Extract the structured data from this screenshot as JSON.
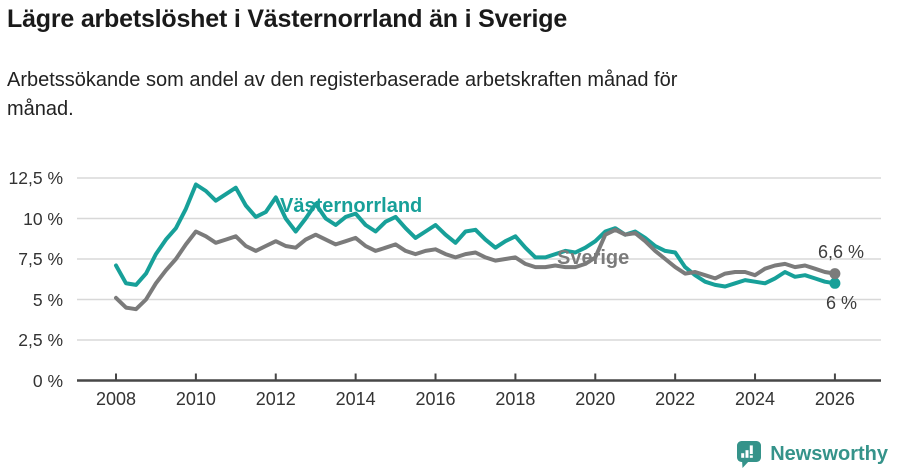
{
  "header": {
    "title": "Lägre arbetslöshet i Västernorrland än i Sverige",
    "subtitle": "Arbetssökande som andel av den registerbaserade arbetskraften månad för\nmånad."
  },
  "colors": {
    "accent_teal": "#17A099",
    "line_sverige": "#7B7B7B",
    "grid": "#D8D8D8",
    "axis": "#474747",
    "text_dark": "#1A1A1A",
    "text_body": "#222222",
    "tick_text": "#333333",
    "annotation_text": "#3D3D3D",
    "logo_teal": "#35938A"
  },
  "chart_data": {
    "type": "line",
    "unit": "%",
    "grid": true,
    "legend": "inline-labels",
    "ylim": [
      0,
      12.5
    ],
    "yticks": {
      "values": [
        12.5,
        10,
        7.5,
        5,
        2.5,
        0
      ],
      "labels": [
        "12,5 %",
        "10 %",
        "7,5 %",
        "5 %",
        "2,5 %",
        "0 %"
      ]
    },
    "xticks": {
      "values": [
        2008,
        2010,
        2012,
        2014,
        2016,
        2018,
        2020,
        2022,
        2024,
        2026
      ],
      "labels": [
        "2008",
        "2010",
        "2012",
        "2014",
        "2016",
        "2018",
        "2020",
        "2022",
        "2024",
        "2026"
      ]
    },
    "x": [
      "2008-Q1",
      "2008-Q2",
      "2008-Q3",
      "2008-Q4",
      "2009-Q1",
      "2009-Q2",
      "2009-Q3",
      "2009-Q4",
      "2010-Q1",
      "2010-Q2",
      "2010-Q3",
      "2010-Q4",
      "2011-Q1",
      "2011-Q2",
      "2011-Q3",
      "2011-Q4",
      "2012-Q1",
      "2012-Q2",
      "2012-Q3",
      "2012-Q4",
      "2013-Q1",
      "2013-Q2",
      "2013-Q3",
      "2013-Q4",
      "2014-Q1",
      "2014-Q2",
      "2014-Q3",
      "2014-Q4",
      "2015-Q1",
      "2015-Q2",
      "2015-Q3",
      "2015-Q4",
      "2016-Q1",
      "2016-Q2",
      "2016-Q3",
      "2016-Q4",
      "2017-Q1",
      "2017-Q2",
      "2017-Q3",
      "2017-Q4",
      "2018-Q1",
      "2018-Q2",
      "2018-Q3",
      "2018-Q4",
      "2019-Q1",
      "2019-Q2",
      "2019-Q3",
      "2019-Q4",
      "2020-Q1",
      "2020-Q2",
      "2020-Q3",
      "2020-Q4",
      "2021-Q1",
      "2021-Q2",
      "2021-Q3",
      "2021-Q4",
      "2022-Q1",
      "2022-Q2",
      "2022-Q3",
      "2022-Q4",
      "2023-Q1",
      "2023-Q2",
      "2023-Q3",
      "2023-Q4",
      "2024-Q1",
      "2024-Q2",
      "2024-Q3",
      "2024-Q4",
      "2025-Q1",
      "2025-Q2",
      "2025-Q3",
      "2025-Q4",
      "2026-Q1"
    ],
    "series": [
      {
        "name": "Västernorrland",
        "color": "#17A099",
        "end_label": "6 %",
        "end_value": 6.0,
        "values": [
          7.1,
          6.0,
          5.9,
          6.6,
          7.8,
          8.7,
          9.4,
          10.6,
          12.1,
          11.7,
          11.1,
          11.5,
          11.9,
          10.8,
          10.1,
          10.4,
          11.3,
          10.0,
          9.2,
          10.0,
          10.9,
          10.0,
          9.6,
          10.1,
          10.3,
          9.6,
          9.2,
          9.8,
          10.1,
          9.4,
          8.8,
          9.2,
          9.6,
          9.0,
          8.5,
          9.2,
          9.3,
          8.7,
          8.2,
          8.6,
          8.9,
          8.2,
          7.6,
          7.6,
          7.8,
          8.0,
          7.9,
          8.2,
          8.6,
          9.2,
          9.4,
          9.0,
          9.2,
          8.8,
          8.3,
          8.0,
          7.9,
          7.0,
          6.5,
          6.1,
          5.9,
          5.8,
          6.0,
          6.2,
          6.1,
          6.0,
          6.3,
          6.7,
          6.4,
          6.5,
          6.3,
          6.1,
          6.0
        ]
      },
      {
        "name": "Sverige",
        "color": "#7B7B7B",
        "end_label": "6,6 %",
        "end_value": 6.6,
        "values": [
          5.1,
          4.5,
          4.4,
          5.0,
          6.0,
          6.8,
          7.5,
          8.4,
          9.2,
          8.9,
          8.5,
          8.7,
          8.9,
          8.3,
          8.0,
          8.3,
          8.6,
          8.3,
          8.2,
          8.7,
          9.0,
          8.7,
          8.4,
          8.6,
          8.8,
          8.3,
          8.0,
          8.2,
          8.4,
          8.0,
          7.8,
          8.0,
          8.1,
          7.8,
          7.6,
          7.8,
          7.9,
          7.6,
          7.4,
          7.5,
          7.6,
          7.2,
          7.0,
          7.0,
          7.1,
          7.0,
          7.0,
          7.2,
          7.6,
          9.0,
          9.3,
          9.0,
          9.1,
          8.6,
          8.0,
          7.5,
          7.0,
          6.6,
          6.7,
          6.5,
          6.3,
          6.6,
          6.7,
          6.7,
          6.5,
          6.9,
          7.1,
          7.2,
          7.0,
          7.1,
          6.9,
          6.7,
          6.6
        ]
      }
    ]
  },
  "footer": {
    "brand": "Newsworthy"
  }
}
